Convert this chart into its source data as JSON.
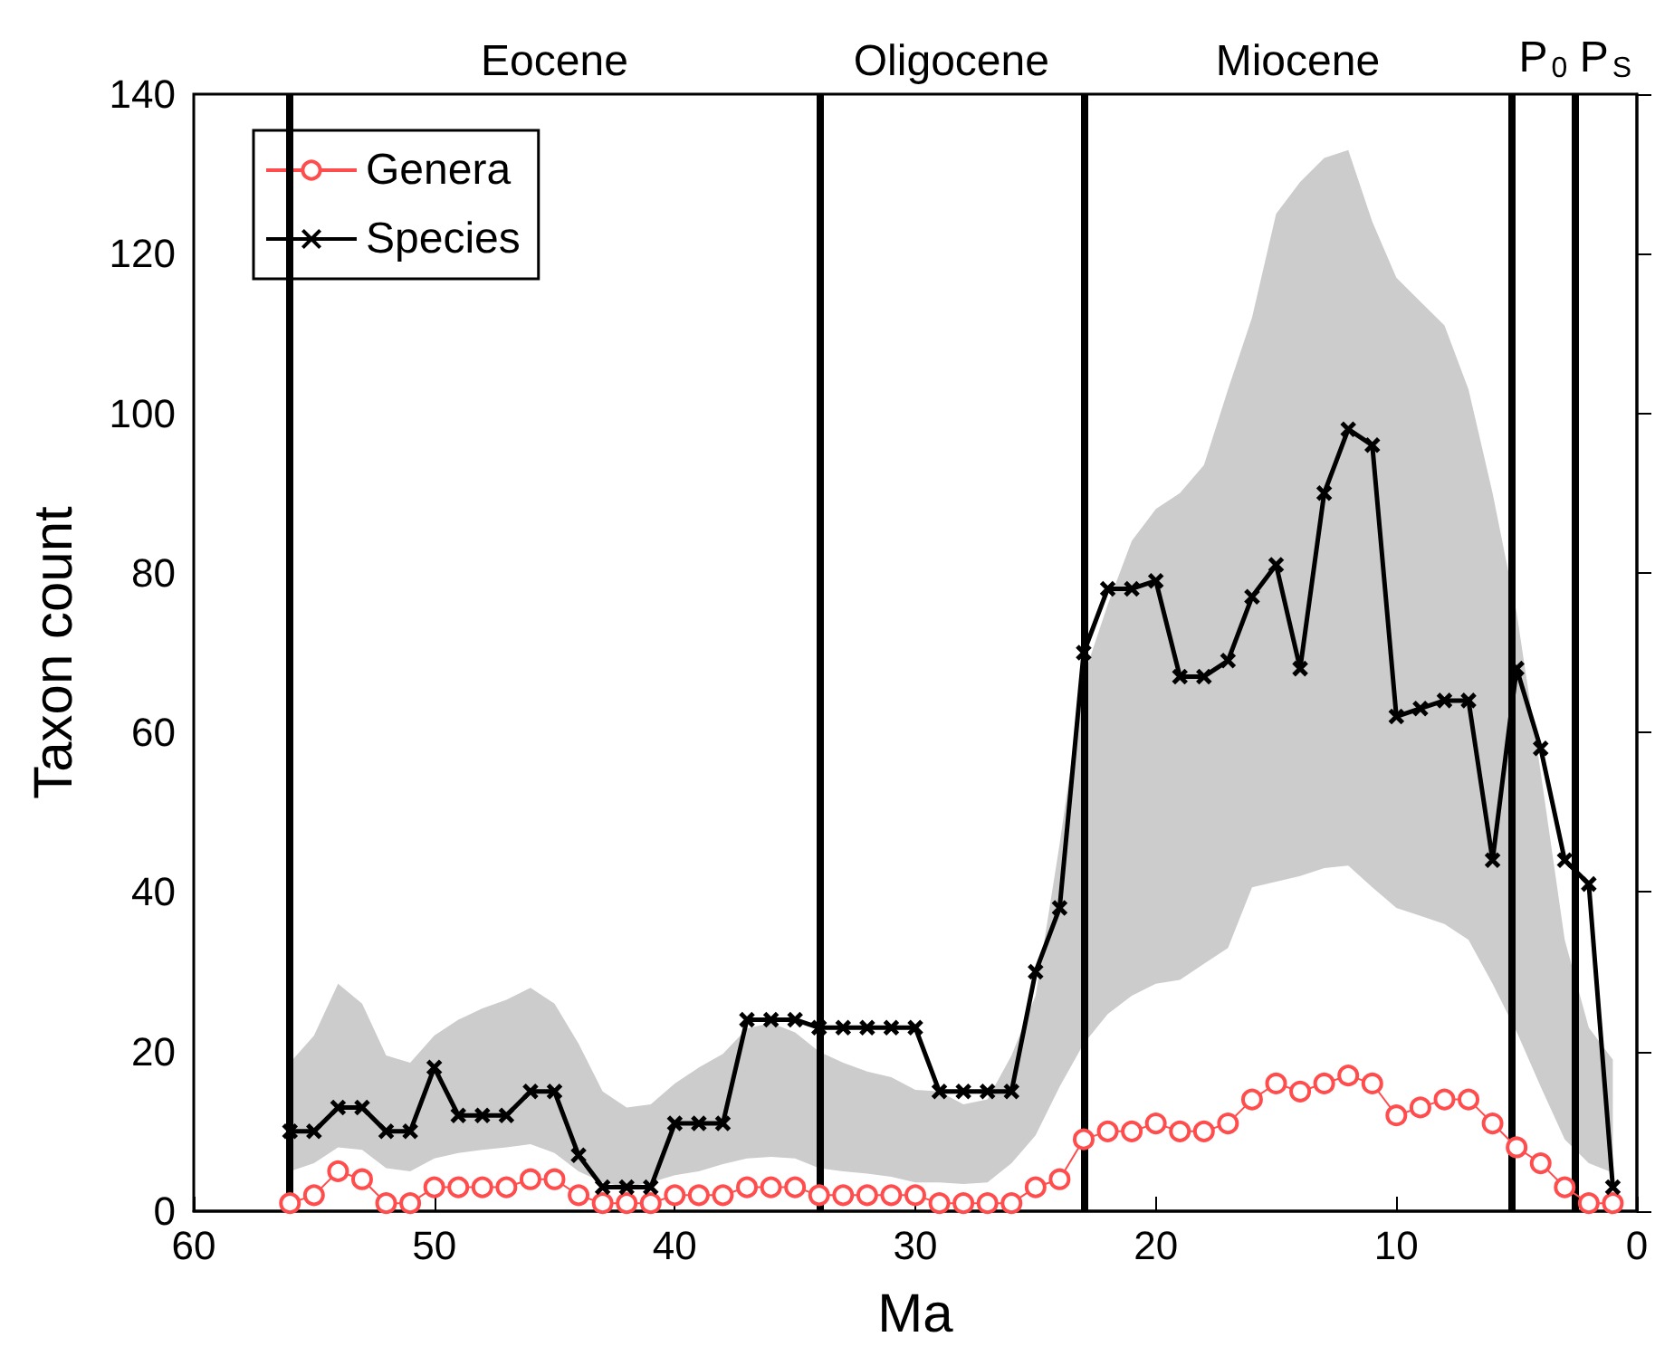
{
  "chart_data": {
    "type": "line",
    "xlabel": "Ma",
    "ylabel": "Taxon count",
    "xlim": [
      60,
      0
    ],
    "xticks": [
      60,
      50,
      40,
      30,
      20,
      10,
      0
    ],
    "ylim": [
      0,
      140
    ],
    "yticks": [
      0,
      20,
      40,
      60,
      80,
      100,
      120,
      140
    ],
    "grid": false,
    "legend": "top left",
    "series": [
      {
        "name": "Genera",
        "color": "#ff4d4d",
        "marker": "circle",
        "x": [
          56,
          55,
          54,
          53,
          52,
          51,
          50,
          49,
          48,
          47,
          46,
          45,
          44,
          43,
          42,
          41,
          40,
          39,
          38,
          37,
          36,
          35,
          34,
          33,
          32,
          31,
          30,
          29,
          28,
          27,
          26,
          25,
          24,
          23,
          22,
          21,
          20,
          19,
          18,
          17,
          16,
          15,
          14,
          13,
          12,
          11,
          10,
          9,
          8,
          7,
          6,
          5,
          4,
          3,
          2,
          1
        ],
        "values": [
          1,
          2,
          5,
          4,
          1,
          1,
          3,
          3,
          3,
          3,
          4,
          4,
          2,
          1,
          1,
          1,
          2,
          2,
          2,
          3,
          3,
          3,
          2,
          2,
          2,
          2,
          2,
          1,
          1,
          1,
          1,
          3,
          4,
          9,
          10,
          10,
          11,
          10,
          10,
          11,
          14,
          16,
          15,
          16,
          17,
          16,
          12,
          13,
          14,
          14,
          11,
          8,
          6,
          3,
          1,
          1
        ]
      },
      {
        "name": "Species",
        "color": "#000000",
        "marker": "cross",
        "x": [
          56,
          55,
          54,
          53,
          52,
          51,
          50,
          49,
          48,
          47,
          46,
          45,
          44,
          43,
          42,
          41,
          40,
          39,
          38,
          37,
          36,
          35,
          34,
          33,
          32,
          31,
          30,
          29,
          28,
          27,
          26,
          25,
          24,
          23,
          22,
          21,
          20,
          19,
          18,
          17,
          16,
          15,
          14,
          13,
          12,
          11,
          10,
          9,
          8,
          7,
          6,
          5,
          4,
          3,
          2,
          1
        ],
        "values": [
          10,
          10,
          13,
          13,
          10,
          10,
          18,
          12,
          12,
          12,
          15,
          15,
          7,
          3,
          3,
          3,
          11,
          11,
          11,
          24,
          24,
          24,
          23,
          23,
          23,
          23,
          23,
          15,
          15,
          15,
          15,
          30,
          38,
          70,
          78,
          78,
          79,
          67,
          67,
          69,
          77,
          81,
          68,
          90,
          98,
          96,
          62,
          63,
          64,
          64,
          44,
          68,
          58,
          44,
          41,
          3
        ],
        "lower": [
          5,
          6,
          8,
          7.7,
          5.4,
          5,
          6.6,
          7.3,
          7.7,
          8,
          8.4,
          7.3,
          5,
          3.6,
          3,
          3.6,
          4.5,
          5,
          5.9,
          6.6,
          6.8,
          6.6,
          5.4,
          5,
          4.7,
          4.3,
          3.6,
          3.6,
          3.4,
          3.6,
          6,
          9.5,
          15.6,
          21,
          24.7,
          27,
          28.5,
          29,
          31,
          33,
          40.6,
          41.3,
          42,
          43,
          43.3,
          40.6,
          38,
          37,
          36,
          34,
          28.5,
          22.5,
          15.6,
          9,
          6,
          4.8
        ],
        "upper": [
          18.6,
          22,
          28.5,
          26,
          19.5,
          18.6,
          22,
          24,
          25.4,
          26.5,
          28,
          26,
          21,
          15,
          13,
          13.4,
          16,
          18,
          19.7,
          22.9,
          23.6,
          22.4,
          20,
          18.6,
          17.5,
          16.8,
          15.2,
          15,
          13.4,
          14,
          19.5,
          27,
          46,
          67,
          76,
          84,
          88,
          90,
          93.5,
          103,
          112,
          125,
          129,
          132,
          133,
          124,
          117,
          114,
          111,
          103,
          90,
          75,
          55,
          34,
          23,
          19
        ]
      }
    ],
    "ref_lines": [
      {
        "axis": "x",
        "value": 56,
        "color": "#000000"
      },
      {
        "axis": "x",
        "value": 34,
        "color": "#000000"
      },
      {
        "axis": "x",
        "value": 23,
        "color": "#000000"
      },
      {
        "axis": "x",
        "value": 5.2,
        "color": "#000000"
      },
      {
        "axis": "x",
        "value": 2.6,
        "color": "#000000"
      }
    ],
    "annotations": [
      "Eocene",
      "Oligocene",
      "Miocene",
      "P$_{0}$",
      "P$_{S}$"
    ]
  }
}
